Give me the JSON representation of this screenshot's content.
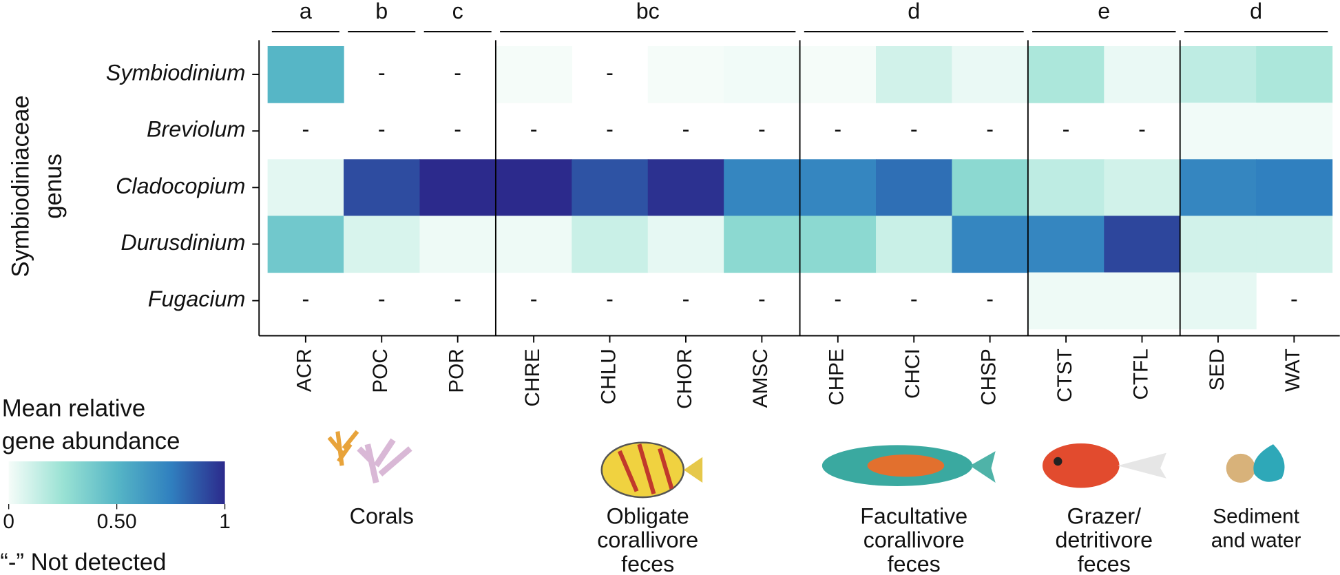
{
  "chart_data": {
    "type": "heatmap",
    "ylabel": [
      "Symbiodiniaceae",
      "genus"
    ],
    "categories": [
      "ACR",
      "POC",
      "POR",
      "CHRE",
      "CHLU",
      "CHOR",
      "AMSC",
      "CHPE",
      "CHCI",
      "CHSP",
      "CTST",
      "CTFL",
      "SED",
      "WAT"
    ],
    "rows": [
      "Symbiodinium",
      "Breviolum",
      "Cladocopium",
      "Durusdinium",
      "Fugacium"
    ],
    "values": [
      [
        0.5,
        null,
        null,
        0.0,
        null,
        0.0,
        0.01,
        0.0,
        0.1,
        0.03,
        0.2,
        0.03,
        0.15,
        0.2
      ],
      [
        null,
        null,
        null,
        null,
        null,
        null,
        null,
        null,
        null,
        null,
        null,
        null,
        0.01,
        0.01
      ],
      [
        0.05,
        0.9,
        1.0,
        1.0,
        0.88,
        0.98,
        0.72,
        0.72,
        0.8,
        0.3,
        0.15,
        0.1,
        0.72,
        0.75
      ],
      [
        0.4,
        0.08,
        0.02,
        0.02,
        0.12,
        0.04,
        0.3,
        0.3,
        0.12,
        0.72,
        0.72,
        0.92,
        0.1,
        0.1
      ],
      [
        null,
        null,
        null,
        null,
        null,
        null,
        null,
        null,
        null,
        null,
        0.02,
        0.02,
        0.04,
        null
      ]
    ],
    "missing_label": "-",
    "significance_groups": [
      {
        "label": "a",
        "span": 1
      },
      {
        "label": "b",
        "span": 1
      },
      {
        "label": "c",
        "span": 1
      },
      {
        "label": "bc",
        "span": 4
      },
      {
        "label": "d",
        "span": 3
      },
      {
        "label": "e",
        "span": 2
      },
      {
        "label": "d",
        "span": 2
      }
    ],
    "source_groups": [
      {
        "label": [
          "Corals"
        ],
        "span": 3
      },
      {
        "label": [
          "Obligate",
          "corallivore",
          "feces"
        ],
        "span": 4
      },
      {
        "label": [
          "Facultative",
          "corallivore",
          "feces"
        ],
        "span": 3
      },
      {
        "label": [
          "Grazer/",
          "detritivore",
          "feces"
        ],
        "span": 2
      },
      {
        "label": [
          "Sediment",
          "and water"
        ],
        "span": 2
      }
    ],
    "colorbar": {
      "title": [
        "Mean relative",
        "gene abundance"
      ],
      "lim": [
        0,
        1
      ],
      "ticks": [
        0,
        {
          "value": 0.5,
          "label": "0.50"
        },
        1
      ],
      "colors": [
        "#f5fcf9",
        "#9ae2d4",
        "#56b6c6",
        "#3080bf",
        "#2c2a8c"
      ]
    },
    "missing_note": "“-” Not detected"
  }
}
